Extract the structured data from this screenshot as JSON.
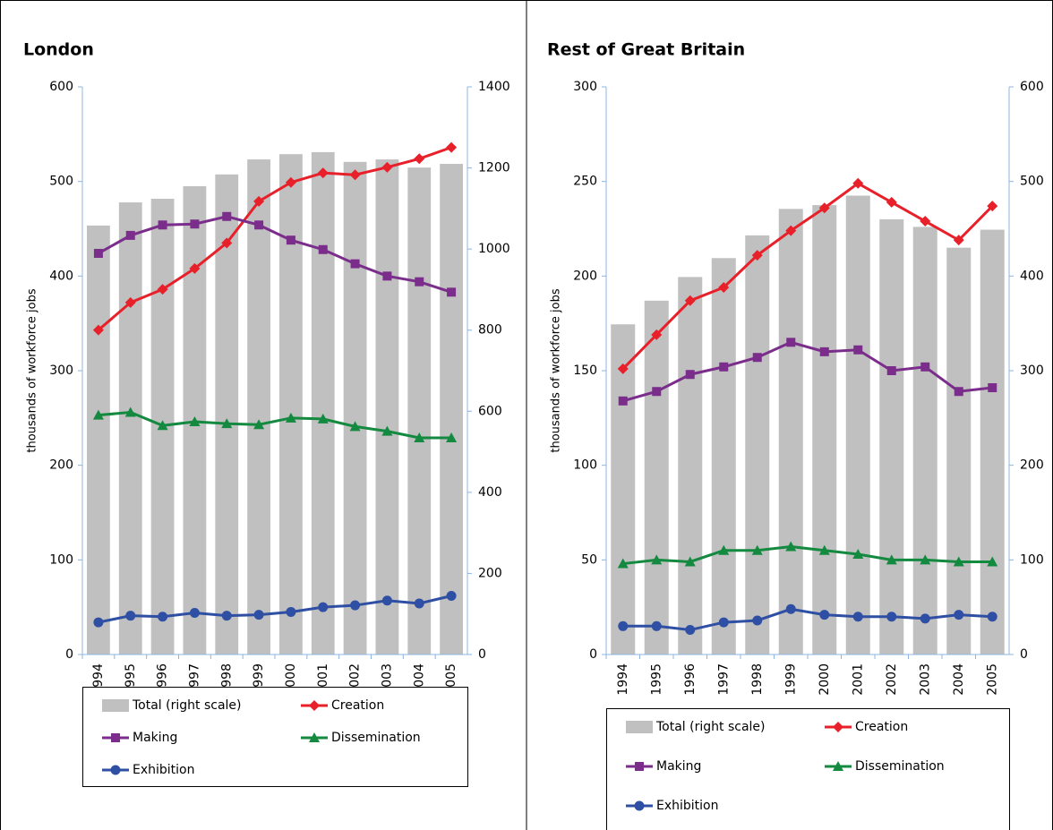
{
  "chart_data": [
    {
      "type": "bar-line",
      "title": "London",
      "ylabel": "thousands of workforce jobs",
      "categories": [
        "1994",
        "1995",
        "1996",
        "1997",
        "1998",
        "1999",
        "2000",
        "2001",
        "2002",
        "2003",
        "2004",
        "2005"
      ],
      "ylim": [
        0,
        600
      ],
      "yticks": [
        0,
        100,
        200,
        300,
        400,
        500,
        600
      ],
      "y2lim": [
        0,
        1400
      ],
      "y2ticks": [
        0,
        200,
        400,
        600,
        800,
        1000,
        1200,
        1400
      ],
      "series": [
        {
          "name": "Total (right scale)",
          "color": "#c0c0c0",
          "axis": "y2",
          "marker": "bar",
          "values": [
            1058,
            1115,
            1124,
            1155,
            1184,
            1221,
            1234,
            1239,
            1215,
            1221,
            1201,
            1210
          ]
        },
        {
          "name": "Creation",
          "color": "#e8202a",
          "marker": "diamond",
          "values": [
            343,
            372,
            386,
            408,
            435,
            479,
            499,
            509,
            507,
            515,
            524,
            536
          ]
        },
        {
          "name": "Making",
          "color": "#7b2d8b",
          "marker": "square",
          "values": [
            424,
            443,
            454,
            455,
            463,
            454,
            438,
            428,
            413,
            400,
            394,
            383
          ]
        },
        {
          "name": "Dissemination",
          "color": "#138a3f",
          "marker": "triangle",
          "values": [
            253,
            256,
            242,
            246,
            244,
            243,
            250,
            249,
            241,
            236,
            229,
            229
          ]
        },
        {
          "name": "Exhibition",
          "color": "#2e4fa3",
          "marker": "circle",
          "values": [
            34,
            41,
            40,
            44,
            41,
            42,
            45,
            50,
            52,
            57,
            54,
            62
          ]
        }
      ]
    },
    {
      "type": "bar-line",
      "title": "Rest of Great Britain",
      "ylabel": "thousands of workforce jobs",
      "categories": [
        "1994",
        "1995",
        "1996",
        "1997",
        "1998",
        "1999",
        "2000",
        "2001",
        "2002",
        "2003",
        "2004",
        "2005"
      ],
      "ylim": [
        0,
        300
      ],
      "yticks": [
        0,
        50,
        100,
        150,
        200,
        250,
        300
      ],
      "y2lim": [
        0,
        600
      ],
      "y2ticks": [
        0,
        100,
        200,
        300,
        400,
        500,
        600
      ],
      "series": [
        {
          "name": "Total (right scale)",
          "color": "#c0c0c0",
          "axis": "y2",
          "marker": "bar",
          "values": [
            349,
            374,
            399,
            419,
            443,
            471,
            475,
            485,
            460,
            452,
            430,
            449
          ]
        },
        {
          "name": "Creation",
          "color": "#e8202a",
          "marker": "diamond",
          "values": [
            151,
            169,
            187,
            194,
            211,
            224,
            236,
            249,
            239,
            229,
            219,
            237
          ]
        },
        {
          "name": "Making",
          "color": "#7b2d8b",
          "marker": "square",
          "values": [
            134,
            139,
            148,
            152,
            157,
            165,
            160,
            161,
            150,
            152,
            139,
            141
          ]
        },
        {
          "name": "Dissemination",
          "color": "#138a3f",
          "marker": "triangle",
          "values": [
            48,
            50,
            49,
            55,
            55,
            57,
            55,
            53,
            50,
            50,
            49,
            49
          ]
        },
        {
          "name": "Exhibition",
          "color": "#2e4fa3",
          "marker": "circle",
          "values": [
            15,
            15,
            13,
            17,
            18,
            24,
            21,
            20,
            20,
            19,
            21,
            20
          ]
        }
      ]
    }
  ]
}
